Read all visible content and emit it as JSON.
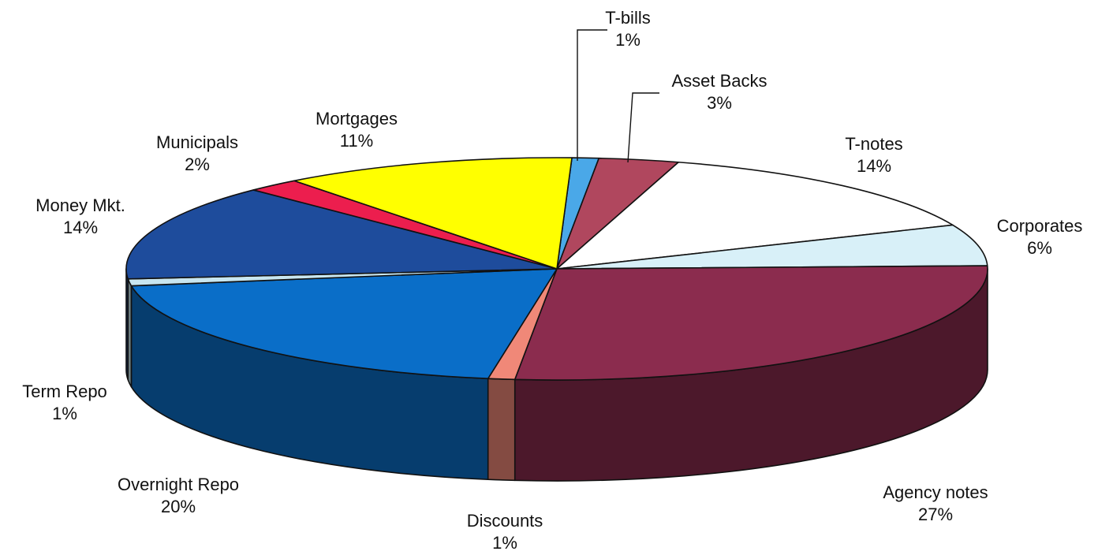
{
  "chart_data": {
    "type": "pie",
    "title": "",
    "slices": [
      {
        "label": "T-bills",
        "pct_label": "1%",
        "value": 1,
        "color": "#4aa8e8"
      },
      {
        "label": "Asset Backs",
        "pct_label": "3%",
        "value": 3,
        "color": "#b0475e"
      },
      {
        "label": "T-notes",
        "pct_label": "14%",
        "value": 14,
        "color": "#ffffff"
      },
      {
        "label": "Corporates",
        "pct_label": "6%",
        "value": 6,
        "color": "#d8f0f8"
      },
      {
        "label": "Agency notes",
        "pct_label": "27%",
        "value": 27,
        "color": "#8b2c4e"
      },
      {
        "label": "Discounts",
        "pct_label": "1%",
        "value": 1,
        "color": "#f08878"
      },
      {
        "label": "Overnight Repo",
        "pct_label": "20%",
        "value": 20,
        "color": "#0a6ec8"
      },
      {
        "label": "Term Repo",
        "pct_label": "1%",
        "value": 1,
        "color": "#c8e6f0"
      },
      {
        "label": "Money Mkt.",
        "pct_label": "14%",
        "value": 14,
        "color": "#1e4c9c"
      },
      {
        "label": "Municipals",
        "pct_label": "2%",
        "value": 2,
        "color": "#ec1e4e"
      },
      {
        "label": "Mortgages",
        "pct_label": "11%",
        "value": 11,
        "color": "#ffff00"
      }
    ]
  }
}
